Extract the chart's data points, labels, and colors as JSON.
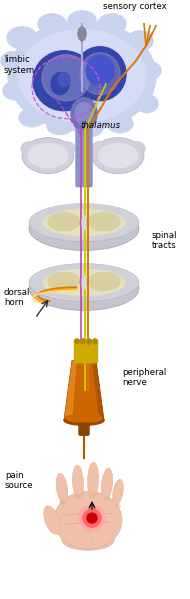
{
  "bg_color": "#ffffff",
  "labels": {
    "sensory_cortex": "sensory cortex",
    "limbic_system": "limbic\nsystem",
    "thalamus": "thalamus",
    "dorsal_horn": "dorsal\nhorn",
    "spinal_tracts": "spinal\ntracts",
    "peripheral_nerve": "peripheral\nnerve",
    "pain_source": "pain\nsource"
  },
  "colors": {
    "brain_outer": "#c8d4ee",
    "brain_outer2": "#b8c8e8",
    "brain_deep_blue": "#3344aa",
    "brain_mid_blue": "#5566cc",
    "brain_light_purple": "#9090cc",
    "thalamus_body": "#7070b8",
    "thalamus_stem": "#8080c0",
    "stem_color": "#9090c8",
    "spinal_outer": "#c0c0cc",
    "spinal_inner": "#e0d8b0",
    "spinal_center": "#b8a870",
    "nerve_body": "#cc6600",
    "nerve_highlight": "#ee9933",
    "nerve_dark": "#994400",
    "nerve_pin": "#ccaa00",
    "nerve_pin_dark": "#aa8800",
    "hand_skin": "#f0c0a8",
    "hand_lines": "#dda898",
    "pain_outer1": "#ffaaaa",
    "pain_outer2": "#ff6666",
    "pain_center": "#cc0000",
    "line_orange": "#dd7700",
    "line_orange2": "#ffaa00",
    "line_yellow": "#cccc00",
    "line_purple": "#bb44bb",
    "arrow_color": "#222222"
  },
  "figsize": [
    1.9,
    5.99
  ],
  "dpi": 100
}
